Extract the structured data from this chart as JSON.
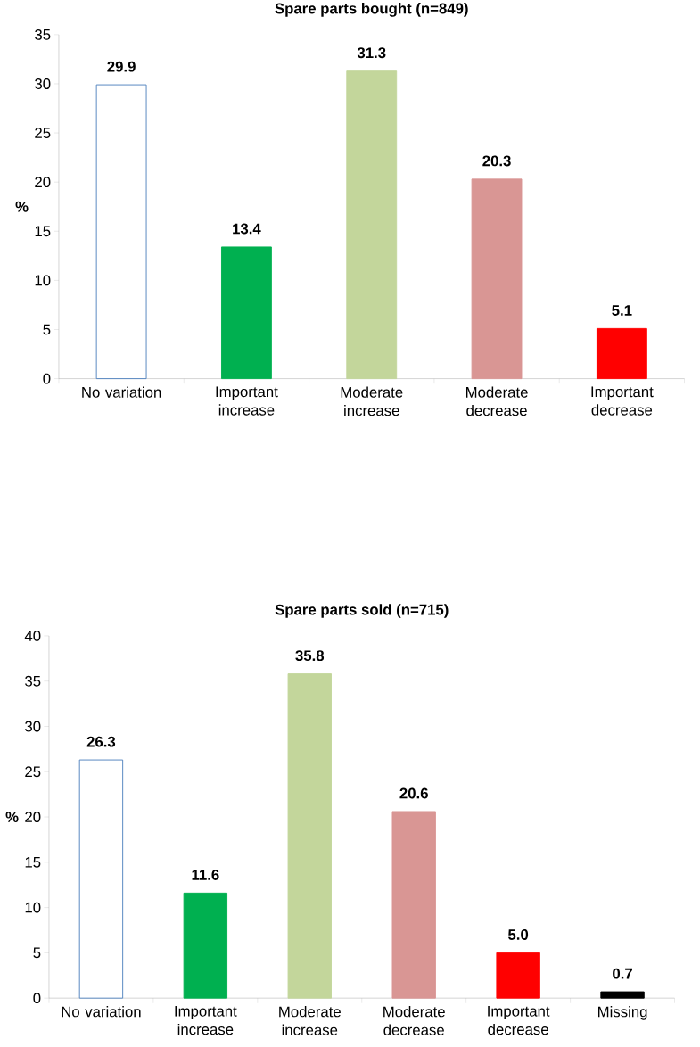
{
  "chart_data": [
    {
      "type": "bar",
      "title": "Spare parts bought (n=849)",
      "ylabel": "%",
      "categories": [
        "No variation",
        "Important increase",
        "Moderate increase",
        "Moderate decrease",
        "Important decrease"
      ],
      "values": [
        29.9,
        13.4,
        31.3,
        20.3,
        5.1
      ],
      "value_labels": [
        "29.9",
        "13.4",
        "31.3",
        "20.3",
        "5.1"
      ],
      "colors": [
        "#ffffff",
        "#00b050",
        "#c3d69b",
        "#d99694",
        "#ff0000"
      ],
      "ylim": [
        0,
        35
      ],
      "yticks": [
        0,
        5,
        10,
        15,
        20,
        25,
        30,
        35
      ]
    },
    {
      "type": "bar",
      "title": "Spare parts sold (n=715)",
      "ylabel": "%",
      "categories": [
        "No variation",
        "Important increase",
        "Moderate increase",
        "Moderate decrease",
        "Important decrease",
        "Missing"
      ],
      "values": [
        26.3,
        11.6,
        35.8,
        20.6,
        5.0,
        0.7
      ],
      "value_labels": [
        "26.3",
        "11.6",
        "35.8",
        "20.6",
        "5.0",
        "0.7"
      ],
      "colors": [
        "#ffffff",
        "#00b050",
        "#c3d69b",
        "#d99694",
        "#ff0000",
        "#000000"
      ],
      "ylim": [
        0,
        40
      ],
      "yticks": [
        0,
        5,
        10,
        15,
        20,
        25,
        30,
        35,
        40
      ]
    }
  ]
}
